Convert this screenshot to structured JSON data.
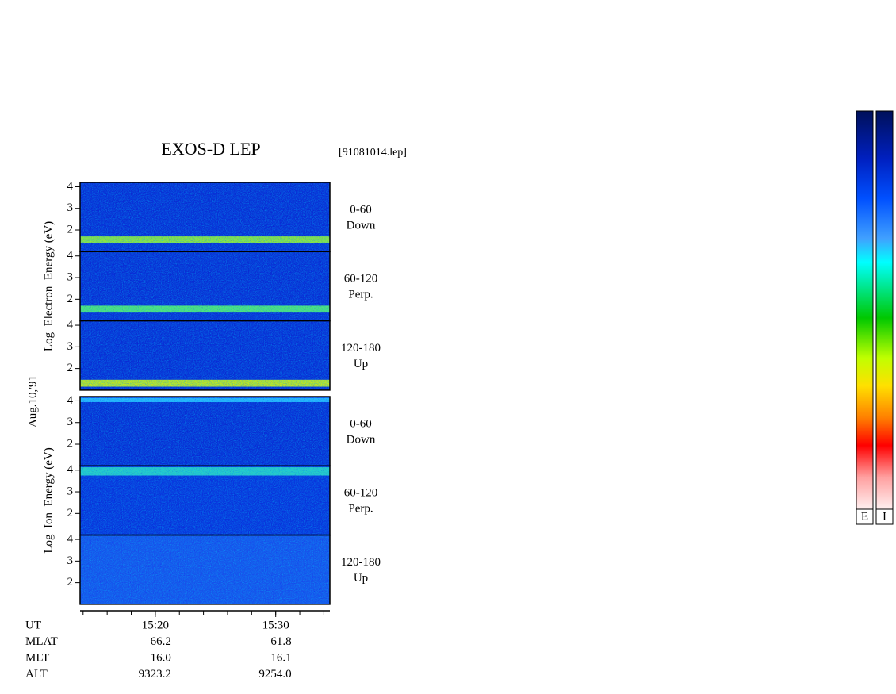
{
  "chart_data": {
    "type": "spectrogram",
    "title": "EXOS-D LEP",
    "file": "[91081014.lep]",
    "date": "Aug.10,'91",
    "groups": [
      {
        "ylabel": "Log  Electron  Energy (eV)",
        "panels": [
          {
            "angle": "0-60",
            "direction": "Down"
          },
          {
            "angle": "60-120",
            "direction": "Perp."
          },
          {
            "angle": "120-180",
            "direction": "Up"
          }
        ]
      },
      {
        "ylabel": "Log  Ion  Energy (eV)",
        "panels": [
          {
            "angle": "0-60",
            "direction": "Down"
          },
          {
            "angle": "60-120",
            "direction": "Perp."
          },
          {
            "angle": "120-180",
            "direction": "Up"
          }
        ]
      }
    ],
    "ylim": [
      1,
      4.2
    ],
    "yticks": [
      2,
      3,
      4
    ],
    "xlim": [
      913.75,
      934.5
    ],
    "xticks": [
      {
        "value": 920,
        "label": "15:20"
      },
      {
        "value": 930,
        "label": "15:30"
      }
    ],
    "xminorticks": [
      914,
      916,
      918,
      920,
      922,
      924,
      926,
      928,
      930,
      932,
      934
    ],
    "orbit": {
      "labels": [
        "UT",
        "MLAT",
        "MLT",
        "ALT"
      ],
      "columns": [
        [
          "66.2",
          "16.0",
          "9323.2"
        ],
        [
          "61.8",
          "16.1",
          "9254.0"
        ]
      ]
    },
    "colorbar_labels": [
      "E",
      "I"
    ]
  }
}
